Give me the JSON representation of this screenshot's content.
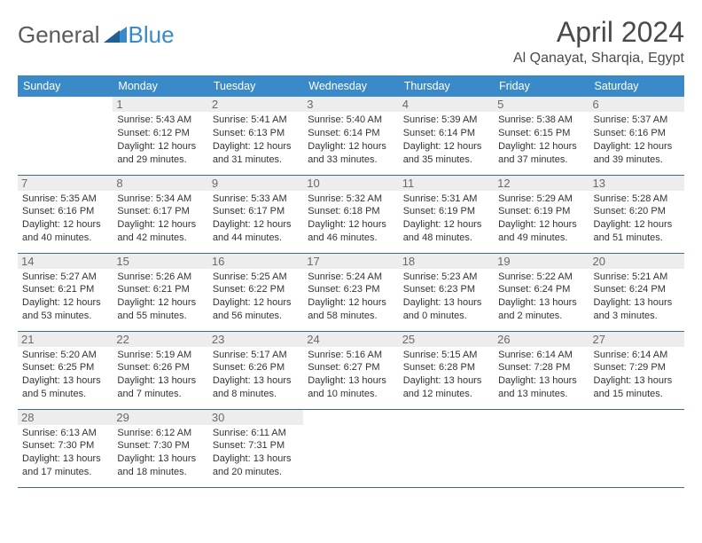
{
  "logo": {
    "text1": "General",
    "text2": "Blue"
  },
  "title": "April 2024",
  "location": "Al Qanayat, Sharqia, Egypt",
  "colors": {
    "header_bg": "#3a8ac9",
    "header_fg": "#ffffff",
    "daynum_bg": "#ededed",
    "daynum_fg": "#6a6a6a",
    "border": "#3a6a9a",
    "logo_accent": "#3a8ac9",
    "logo_text": "#5a5a5a"
  },
  "weekdays": [
    "Sunday",
    "Monday",
    "Tuesday",
    "Wednesday",
    "Thursday",
    "Friday",
    "Saturday"
  ],
  "weeks": [
    [
      null,
      {
        "n": "1",
        "sr": "5:43 AM",
        "ss": "6:12 PM",
        "dl": "12 hours and 29 minutes."
      },
      {
        "n": "2",
        "sr": "5:41 AM",
        "ss": "6:13 PM",
        "dl": "12 hours and 31 minutes."
      },
      {
        "n": "3",
        "sr": "5:40 AM",
        "ss": "6:14 PM",
        "dl": "12 hours and 33 minutes."
      },
      {
        "n": "4",
        "sr": "5:39 AM",
        "ss": "6:14 PM",
        "dl": "12 hours and 35 minutes."
      },
      {
        "n": "5",
        "sr": "5:38 AM",
        "ss": "6:15 PM",
        "dl": "12 hours and 37 minutes."
      },
      {
        "n": "6",
        "sr": "5:37 AM",
        "ss": "6:16 PM",
        "dl": "12 hours and 39 minutes."
      }
    ],
    [
      {
        "n": "7",
        "sr": "5:35 AM",
        "ss": "6:16 PM",
        "dl": "12 hours and 40 minutes."
      },
      {
        "n": "8",
        "sr": "5:34 AM",
        "ss": "6:17 PM",
        "dl": "12 hours and 42 minutes."
      },
      {
        "n": "9",
        "sr": "5:33 AM",
        "ss": "6:17 PM",
        "dl": "12 hours and 44 minutes."
      },
      {
        "n": "10",
        "sr": "5:32 AM",
        "ss": "6:18 PM",
        "dl": "12 hours and 46 minutes."
      },
      {
        "n": "11",
        "sr": "5:31 AM",
        "ss": "6:19 PM",
        "dl": "12 hours and 48 minutes."
      },
      {
        "n": "12",
        "sr": "5:29 AM",
        "ss": "6:19 PM",
        "dl": "12 hours and 49 minutes."
      },
      {
        "n": "13",
        "sr": "5:28 AM",
        "ss": "6:20 PM",
        "dl": "12 hours and 51 minutes."
      }
    ],
    [
      {
        "n": "14",
        "sr": "5:27 AM",
        "ss": "6:21 PM",
        "dl": "12 hours and 53 minutes."
      },
      {
        "n": "15",
        "sr": "5:26 AM",
        "ss": "6:21 PM",
        "dl": "12 hours and 55 minutes."
      },
      {
        "n": "16",
        "sr": "5:25 AM",
        "ss": "6:22 PM",
        "dl": "12 hours and 56 minutes."
      },
      {
        "n": "17",
        "sr": "5:24 AM",
        "ss": "6:23 PM",
        "dl": "12 hours and 58 minutes."
      },
      {
        "n": "18",
        "sr": "5:23 AM",
        "ss": "6:23 PM",
        "dl": "13 hours and 0 minutes."
      },
      {
        "n": "19",
        "sr": "5:22 AM",
        "ss": "6:24 PM",
        "dl": "13 hours and 2 minutes."
      },
      {
        "n": "20",
        "sr": "5:21 AM",
        "ss": "6:24 PM",
        "dl": "13 hours and 3 minutes."
      }
    ],
    [
      {
        "n": "21",
        "sr": "5:20 AM",
        "ss": "6:25 PM",
        "dl": "13 hours and 5 minutes."
      },
      {
        "n": "22",
        "sr": "5:19 AM",
        "ss": "6:26 PM",
        "dl": "13 hours and 7 minutes."
      },
      {
        "n": "23",
        "sr": "5:17 AM",
        "ss": "6:26 PM",
        "dl": "13 hours and 8 minutes."
      },
      {
        "n": "24",
        "sr": "5:16 AM",
        "ss": "6:27 PM",
        "dl": "13 hours and 10 minutes."
      },
      {
        "n": "25",
        "sr": "5:15 AM",
        "ss": "6:28 PM",
        "dl": "13 hours and 12 minutes."
      },
      {
        "n": "26",
        "sr": "6:14 AM",
        "ss": "7:28 PM",
        "dl": "13 hours and 13 minutes."
      },
      {
        "n": "27",
        "sr": "6:14 AM",
        "ss": "7:29 PM",
        "dl": "13 hours and 15 minutes."
      }
    ],
    [
      {
        "n": "28",
        "sr": "6:13 AM",
        "ss": "7:30 PM",
        "dl": "13 hours and 17 minutes."
      },
      {
        "n": "29",
        "sr": "6:12 AM",
        "ss": "7:30 PM",
        "dl": "13 hours and 18 minutes."
      },
      {
        "n": "30",
        "sr": "6:11 AM",
        "ss": "7:31 PM",
        "dl": "13 hours and 20 minutes."
      },
      null,
      null,
      null,
      null
    ]
  ],
  "labels": {
    "sunrise": "Sunrise:",
    "sunset": "Sunset:",
    "daylight": "Daylight:"
  }
}
